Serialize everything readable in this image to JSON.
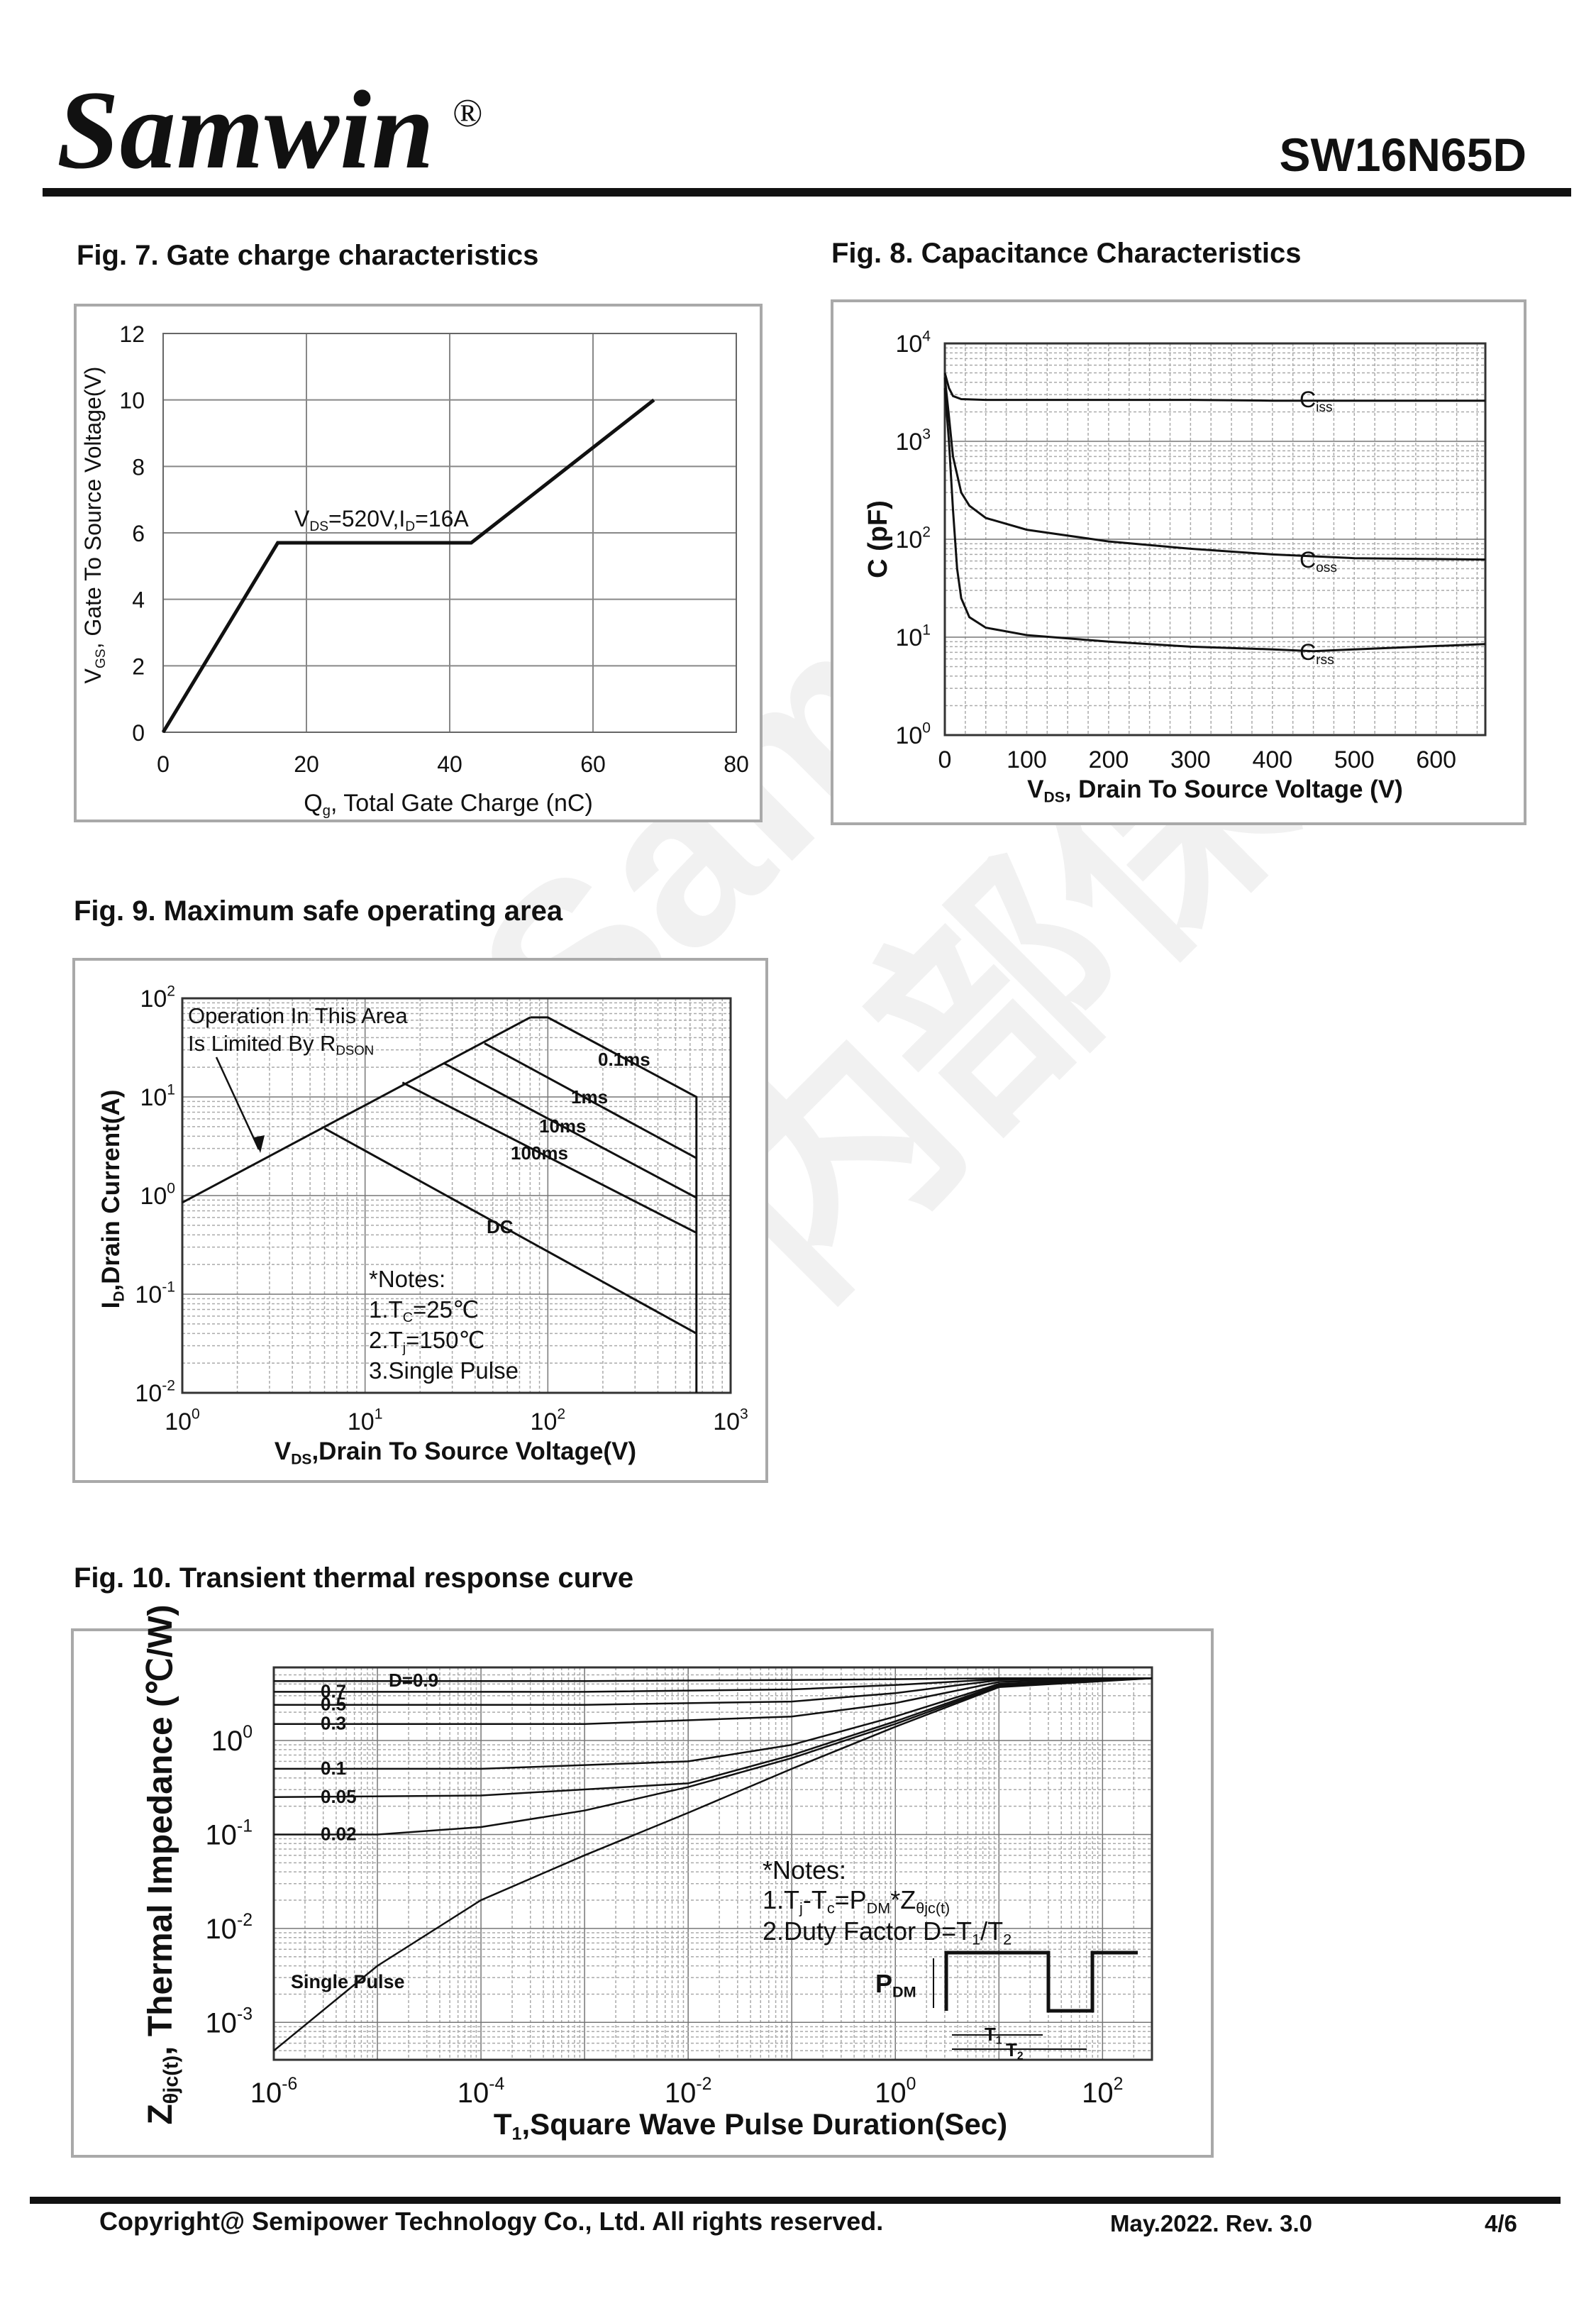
{
  "header": {
    "logo": "Samwin",
    "registered": "®",
    "part_number": "SW16N65D"
  },
  "watermark": {
    "text": "Samwin 内部保密"
  },
  "fig7": {
    "title": "Fig. 7. Gate charge characteristics",
    "chart_data": {
      "type": "line",
      "xlabel": "Qg, Total Gate Charge (nC)",
      "ylabel": "VGS, Gate To Source Voltage(V)",
      "xlim": [
        0,
        80
      ],
      "ylim": [
        0,
        12
      ],
      "x_ticks": [
        "0",
        "20",
        "40",
        "60",
        "80"
      ],
      "y_ticks": [
        "0",
        "2",
        "4",
        "6",
        "8",
        "10",
        "12"
      ],
      "grid": true,
      "annotation": "VDS=520V,ID=16A",
      "series": [
        {
          "x": [
            0,
            16,
            43,
            68.5
          ],
          "y": [
            0,
            5.7,
            5.7,
            10
          ]
        }
      ]
    }
  },
  "fig8": {
    "title": "Fig. 8. Capacitance Characteristics",
    "chart_data": {
      "type": "line",
      "xlabel": "VDS, Drain To Source Voltage (V)",
      "ylabel": "C (pF)",
      "xlim": [
        0,
        660
      ],
      "ylim": [
        1,
        10000
      ],
      "yscale": "log",
      "x_ticks": [
        "0",
        "100",
        "200",
        "300",
        "400",
        "500",
        "600"
      ],
      "y_ticks": [
        "10^0",
        "10^1",
        "10^2",
        "10^3",
        "10^4"
      ],
      "grid": true,
      "series": [
        {
          "name": "Ciss",
          "x": [
            0,
            5,
            10,
            20,
            50,
            100,
            200,
            300,
            400,
            500,
            660
          ],
          "y": [
            5000,
            3500,
            2900,
            2700,
            2650,
            2650,
            2650,
            2650,
            2600,
            2600,
            2600
          ]
        },
        {
          "name": "Coss",
          "x": [
            0,
            5,
            10,
            20,
            30,
            50,
            100,
            200,
            300,
            400,
            500,
            660
          ],
          "y": [
            4500,
            1800,
            700,
            300,
            220,
            165,
            125,
            95,
            80,
            70,
            64,
            62
          ]
        },
        {
          "name": "Crss",
          "x": [
            0,
            5,
            10,
            15,
            20,
            30,
            50,
            100,
            200,
            300,
            400,
            450,
            500,
            660
          ],
          "y": [
            3500,
            1000,
            200,
            50,
            25,
            16,
            12.5,
            10.5,
            9,
            8,
            7.5,
            7.2,
            7.5,
            8.5
          ]
        }
      ]
    }
  },
  "fig9": {
    "title": "Fig. 9. Maximum safe operating area",
    "chart_data": {
      "type": "line",
      "xlabel": "VDS,Drain To Source Voltage(V)",
      "ylabel": "ID,Drain Current(A)",
      "xlim": [
        1,
        1000
      ],
      "ylim": [
        0.01,
        100
      ],
      "xscale": "log",
      "yscale": "log",
      "x_ticks": [
        "10^0",
        "10^1",
        "10^2",
        "10^3"
      ],
      "y_ticks": [
        "10^-2",
        "10^-1",
        "10^0",
        "10^1",
        "10^2"
      ],
      "grid": true,
      "annotations": {
        "rdson_note": "Operation In This Area",
        "rdson_note_2": "Is Limited By RDSON",
        "notes": [
          "*Notes:",
          "1.TC=25℃",
          "2.Tj=150℃",
          "3.Single Pulse"
        ]
      },
      "series": [
        {
          "name": "RDS(on) limit",
          "x": [
            1,
            80
          ],
          "y": [
            0.85,
            64
          ]
        },
        {
          "name": "0.1ms",
          "x": [
            80,
            100,
            650,
            650
          ],
          "y": [
            64,
            64,
            10,
            0.01
          ]
        },
        {
          "name": "1ms",
          "x": [
            45,
            650
          ],
          "y": [
            35,
            2.4
          ]
        },
        {
          "name": "10ms",
          "x": [
            27,
            650
          ],
          "y": [
            22,
            0.95
          ]
        },
        {
          "name": "100ms",
          "x": [
            16,
            650
          ],
          "y": [
            14,
            0.42
          ]
        },
        {
          "name": "DC",
          "x": [
            6,
            650
          ],
          "y": [
            4.8,
            0.04
          ]
        }
      ]
    }
  },
  "fig10": {
    "title": "Fig. 10. Transient thermal response curve",
    "chart_data": {
      "type": "line",
      "xlabel": "T1,Square Wave Pulse Duration(Sec)",
      "ylabel": "Zθjc(t), Thermal Impedance (℃/W)",
      "xlim": [
        1e-06,
        300
      ],
      "ylim": [
        0.0004,
        6
      ],
      "xscale": "log",
      "yscale": "log",
      "x_ticks": [
        "10^-6",
        "10^-4",
        "10^-2",
        "10^0",
        "10^2"
      ],
      "y_ticks": [
        "10^-3",
        "10^-2",
        "10^-1",
        "10^0"
      ],
      "grid": true,
      "annotations": {
        "single_pulse": "Single Pulse",
        "notes": [
          "*Notes:",
          "1.Tj-Tc=PDM*Zθjc(t)",
          "2.Duty Factor D=T1/T2"
        ],
        "pulse_labels": [
          "PDM",
          "T1",
          "T2"
        ]
      },
      "series": [
        {
          "name": "D=0.9",
          "x": [
            1e-06,
            0.001,
            0.1,
            10,
            300
          ],
          "y": [
            4.3,
            4.3,
            4.4,
            4.6,
            4.6
          ]
        },
        {
          "name": "0.7",
          "x": [
            1e-06,
            0.001,
            0.1,
            1,
            10,
            300
          ],
          "y": [
            3.3,
            3.3,
            3.5,
            3.9,
            4.5,
            4.6
          ]
        },
        {
          "name": "0.5",
          "x": [
            1e-06,
            0.001,
            0.1,
            1,
            10,
            300
          ],
          "y": [
            2.4,
            2.4,
            2.6,
            3.2,
            4.4,
            4.6
          ]
        },
        {
          "name": "0.3",
          "x": [
            1e-06,
            0.001,
            0.1,
            1,
            10,
            300
          ],
          "y": [
            1.5,
            1.5,
            1.8,
            2.5,
            4.2,
            4.6
          ]
        },
        {
          "name": "0.1",
          "x": [
            1e-06,
            0.0001,
            0.01,
            0.1,
            1,
            10,
            300
          ],
          "y": [
            0.5,
            0.5,
            0.6,
            0.9,
            1.8,
            4.0,
            4.6
          ]
        },
        {
          "name": "0.05",
          "x": [
            1e-06,
            0.0001,
            0.01,
            0.1,
            1,
            10,
            300
          ],
          "y": [
            0.25,
            0.26,
            0.35,
            0.7,
            1.6,
            3.9,
            4.6
          ]
        },
        {
          "name": "0.02",
          "x": [
            1e-06,
            1e-05,
            0.0001,
            0.001,
            0.01,
            0.1,
            1,
            10,
            300
          ],
          "y": [
            0.1,
            0.1,
            0.12,
            0.18,
            0.32,
            0.65,
            1.5,
            3.8,
            4.6
          ]
        },
        {
          "name": "Single Pulse",
          "x": [
            1e-06,
            1e-05,
            0.0001,
            0.001,
            0.01,
            0.1,
            1,
            10,
            300
          ],
          "y": [
            0.0005,
            0.004,
            0.02,
            0.06,
            0.17,
            0.5,
            1.4,
            3.7,
            4.6
          ]
        }
      ]
    }
  },
  "footer": {
    "copyright": "Copyright@ Semipower Technology Co., Ltd. All rights reserved.",
    "date_rev": "May.2022. Rev. 3.0",
    "page": "4/6"
  }
}
